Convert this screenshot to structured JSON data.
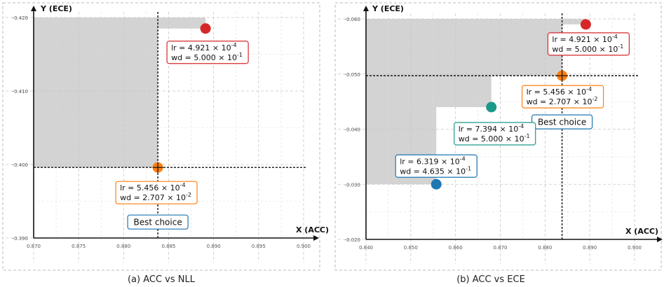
{
  "chart_data": [
    {
      "type": "scatter",
      "caption": "(a) ACC vs NLL",
      "xlabel": "X (ACC)",
      "ylabel": "Y (ECE)",
      "xlim": [
        0.87,
        0.9
      ],
      "ylim": [
        0.39,
        0.42
      ],
      "xticks": [
        "0.870",
        "0.875",
        "0.880",
        "0.885",
        "0.890",
        "0.895",
        "0.900"
      ],
      "yticks": [
        "0.390",
        "0.400",
        "0.410",
        "0.420"
      ],
      "grid": true,
      "points": [
        {
          "x": 0.8891,
          "y": 0.4185,
          "color": "#d62728",
          "lr_mant": "4.921",
          "lr_exp": "-4",
          "wd_mant": "5.000",
          "wd_exp": "-1",
          "label_color": "#d62728",
          "best": false
        },
        {
          "x": 0.8838,
          "y": 0.3996,
          "color": "#ff7f0e",
          "lr_mant": "5.456",
          "lr_exp": "-4",
          "wd_mant": "2.707",
          "wd_exp": "-2",
          "label_color": "#ff7f0e",
          "best": true
        }
      ],
      "best_label": "Best choice",
      "best_label_color": "#1f77b4",
      "shade_color": "#d3d3d3"
    },
    {
      "type": "scatter",
      "caption": "(b) ACC vs ECE",
      "xlabel": "X (ACC)",
      "ylabel": "Y (ECE)",
      "xlim": [
        0.84,
        0.9
      ],
      "ylim": [
        0.02,
        0.06
      ],
      "xticks": [
        "0.840",
        "0.850",
        "0.860",
        "0.870",
        "0.880",
        "0.890",
        "0.900"
      ],
      "yticks": [
        "0.020",
        "0.030",
        "0.040",
        "0.050",
        "0.060"
      ],
      "grid": true,
      "points": [
        {
          "x": 0.8891,
          "y": 0.059,
          "color": "#d62728",
          "lr_mant": "4.921",
          "lr_exp": "-4",
          "wd_mant": "5.000",
          "wd_exp": "-1",
          "label_color": "#d62728",
          "best": false
        },
        {
          "x": 0.8838,
          "y": 0.0497,
          "color": "#ff7f0e",
          "lr_mant": "5.456",
          "lr_exp": "-4",
          "wd_mant": "2.707",
          "wd_exp": "-2",
          "label_color": "#ff7f0e",
          "best": true
        },
        {
          "x": 0.868,
          "y": 0.044,
          "color": "#1a9988",
          "lr_mant": "7.394",
          "lr_exp": "-4",
          "wd_mant": "5.000",
          "wd_exp": "-1",
          "label_color": "#1a9988",
          "best": false
        },
        {
          "x": 0.8557,
          "y": 0.03,
          "color": "#1f77b4",
          "lr_mant": "6.319",
          "lr_exp": "-4",
          "wd_mant": "4.635",
          "wd_exp": "-1",
          "label_color": "#1f77b4",
          "best": false
        }
      ],
      "best_label": "Best choice",
      "best_label_color": "#1f77b4",
      "shade_color": "#d3d3d3"
    }
  ]
}
